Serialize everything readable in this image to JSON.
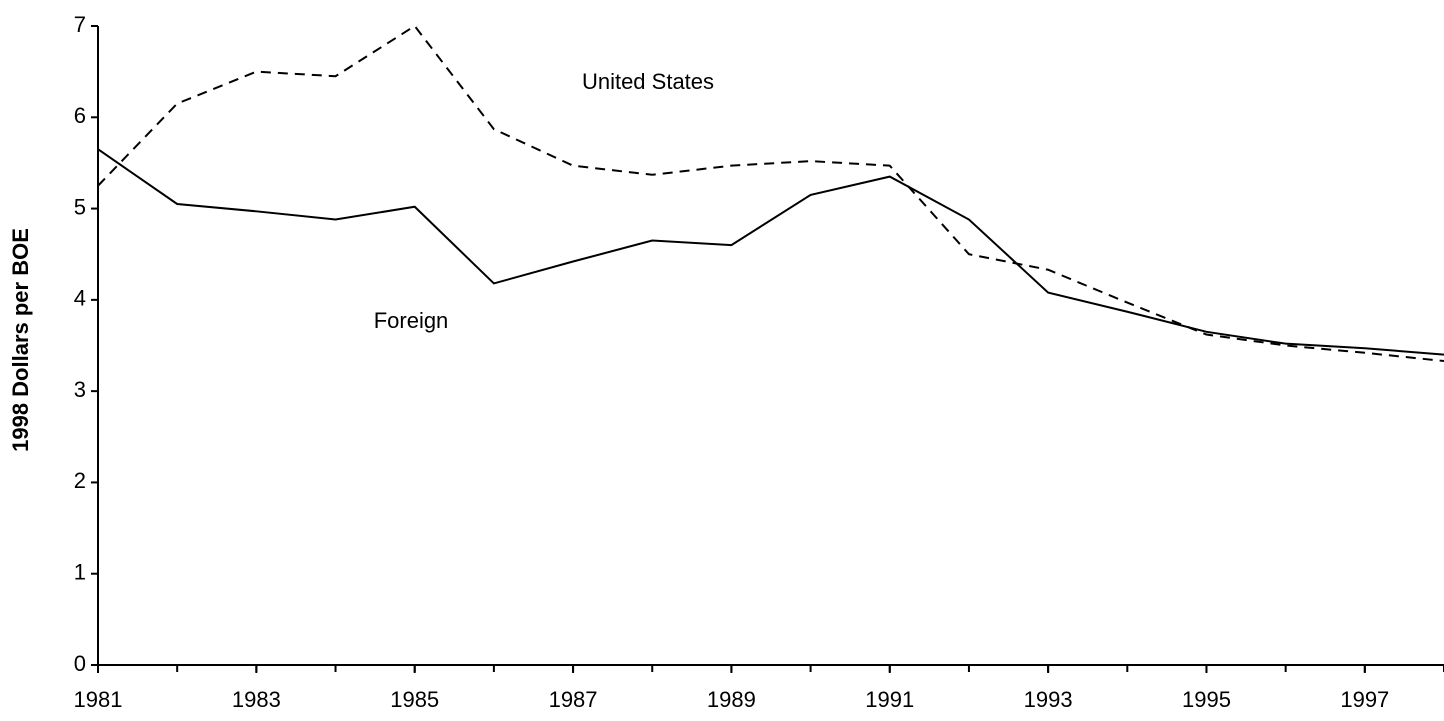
{
  "chart_data": {
    "type": "line",
    "y_label": "1998 Dollars per BOE",
    "x": [
      1981,
      1982,
      1983,
      1984,
      1985,
      1986,
      1987,
      1988,
      1989,
      1990,
      1991,
      1992,
      1993,
      1994,
      1995,
      1996,
      1997,
      1998
    ],
    "series": [
      {
        "name": "United States",
        "color": "#000000",
        "dashed": true,
        "values": [
          5.25,
          6.15,
          6.5,
          6.45,
          7.0,
          5.87,
          5.47,
          5.37,
          5.47,
          5.52,
          5.47,
          4.5,
          4.33,
          3.97,
          3.62,
          3.5,
          3.42,
          3.33
        ]
      },
      {
        "name": "Foreign",
        "color": "#000000",
        "dashed": false,
        "values": [
          5.65,
          5.05,
          4.97,
          4.88,
          5.02,
          4.18,
          4.42,
          4.65,
          4.6,
          5.15,
          5.35,
          4.88,
          4.08,
          3.87,
          3.65,
          3.52,
          3.47,
          3.4
        ]
      }
    ],
    "xlim": [
      1981,
      1998
    ],
    "xticks": [
      1981,
      1983,
      1985,
      1987,
      1989,
      1991,
      1993,
      1995,
      1997
    ],
    "ylim": [
      0,
      7
    ],
    "yticks": [
      0,
      1,
      2,
      3,
      4,
      5,
      6,
      7
    ],
    "grid": false
  }
}
